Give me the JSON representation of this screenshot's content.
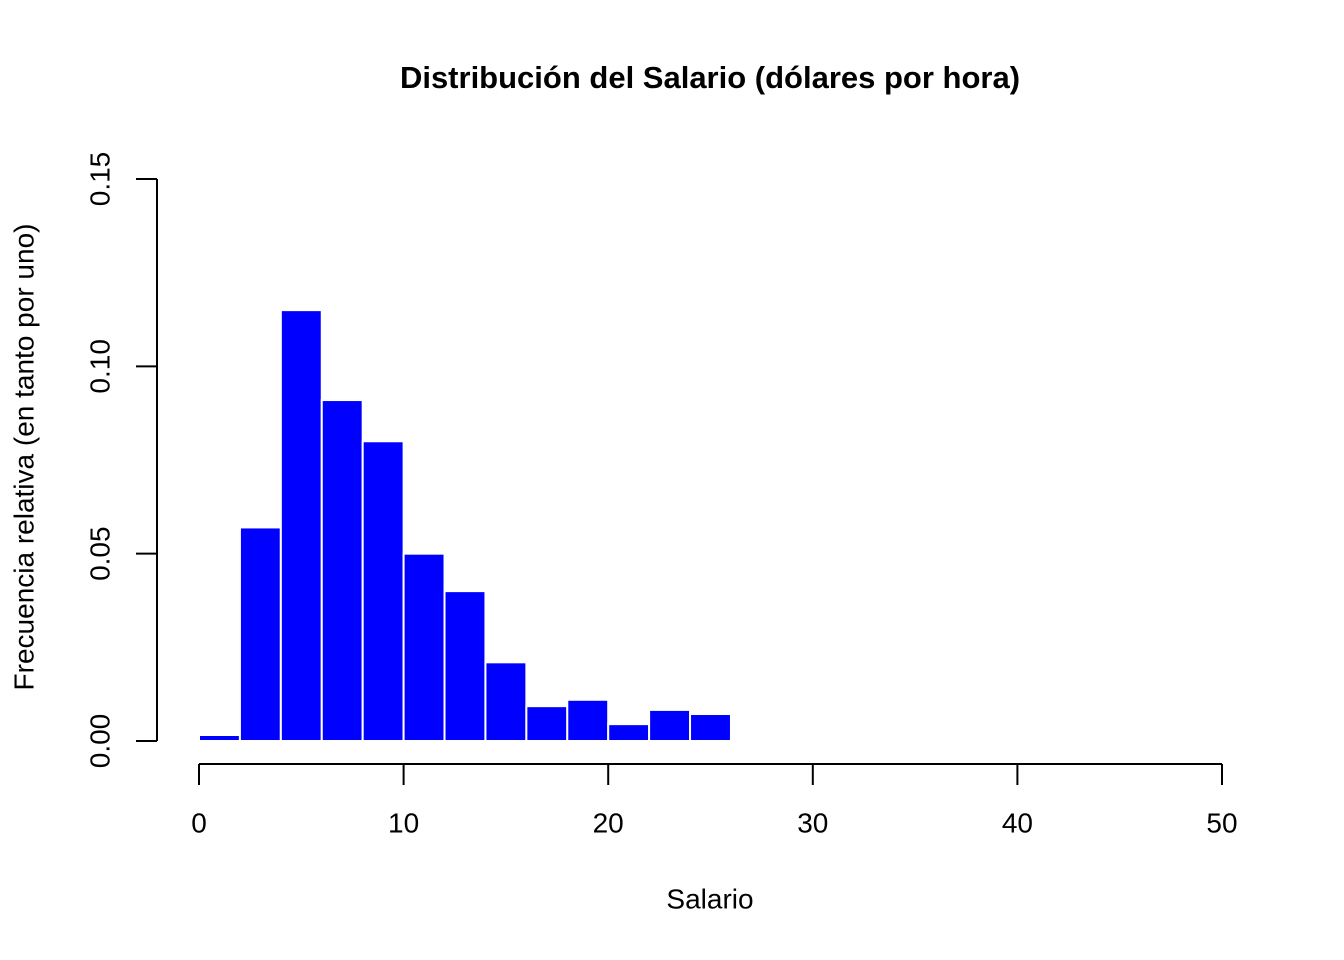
{
  "chart_data": {
    "type": "histogram",
    "title": "Distribución del Salario (dólares por hora)",
    "x_label": "Salario",
    "y_label": "Frecuencia relativa (en tanto por uno)",
    "bins": [
      0,
      2,
      4,
      6,
      8,
      10,
      12,
      14,
      16,
      18,
      20,
      22,
      24,
      26,
      28,
      30,
      32,
      34,
      36,
      38,
      40,
      42,
      44,
      46
    ],
    "values": [
      0.0016,
      0.057,
      0.115,
      0.091,
      0.08,
      0.05,
      0.04,
      0.021,
      0.0093,
      0.011,
      0.0045,
      0.0083,
      0.0072,
      0.0005,
      0,
      0,
      0,
      0,
      0,
      0,
      0,
      0,
      0.0005
    ],
    "color": "#0000ff",
    "xlim": [
      0,
      50
    ],
    "xticks": [
      0,
      10,
      20,
      30,
      40,
      50
    ],
    "ylim": [
      0,
      0.15
    ],
    "yticks": [
      {
        "value": 0,
        "label": "0.00"
      },
      0.05,
      {
        "value": 0.1,
        "label": "0.10"
      },
      0.15
    ]
  }
}
